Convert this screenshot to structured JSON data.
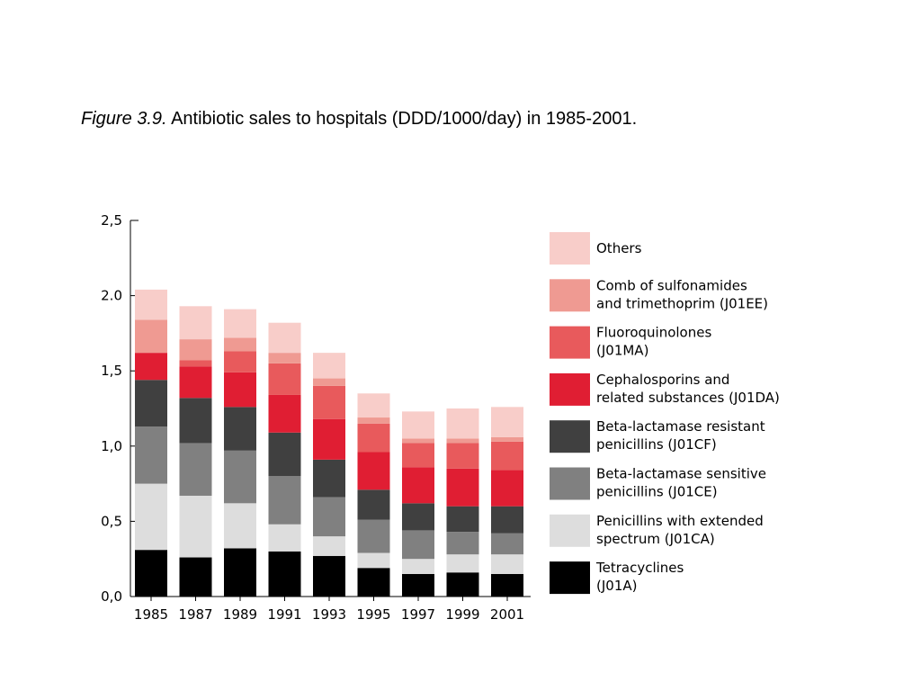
{
  "caption": {
    "figure_label": "Figure 3.9.",
    "text": "Antibiotic sales to hospitals (DDD/1000/day) in 1985-2001."
  },
  "chart_data": {
    "type": "bar",
    "stacked": true,
    "categories": [
      "1985",
      "1987",
      "1989",
      "1991",
      "1993",
      "1995",
      "1997",
      "1999",
      "2001"
    ],
    "ylim": [
      0,
      2.5
    ],
    "yticks": [
      "0,0",
      "0,5",
      "1,0",
      "1,5",
      "2.0",
      "2,5"
    ],
    "ytick_values": [
      0,
      0.5,
      1.0,
      1.5,
      2.0,
      2.5
    ],
    "grid": false,
    "legend_position": "right",
    "series": [
      {
        "name_lines": [
          "Tetracyclines",
          "(J01A)"
        ],
        "color": "#000000",
        "values": [
          0.31,
          0.26,
          0.32,
          0.3,
          0.27,
          0.19,
          0.15,
          0.16,
          0.15
        ]
      },
      {
        "name_lines": [
          "Penicillins with extended",
          "spectrum (J01CA)"
        ],
        "color": "#dddddd",
        "values": [
          0.44,
          0.41,
          0.3,
          0.18,
          0.13,
          0.1,
          0.1,
          0.12,
          0.13
        ]
      },
      {
        "name_lines": [
          "Beta-lactamase sensitive",
          "penicillins (J01CE)"
        ],
        "color": "#808080",
        "values": [
          0.38,
          0.35,
          0.35,
          0.32,
          0.26,
          0.22,
          0.19,
          0.15,
          0.14
        ]
      },
      {
        "name_lines": [
          "Beta-lactamase resistant",
          "penicillins (J01CF)"
        ],
        "color": "#404040",
        "values": [
          0.31,
          0.3,
          0.29,
          0.29,
          0.25,
          0.2,
          0.18,
          0.17,
          0.18
        ]
      },
      {
        "name_lines": [
          "Cephalosporins and",
          "related substances (J01DA)"
        ],
        "color": "#e01e33",
        "values": [
          0.18,
          0.21,
          0.23,
          0.25,
          0.27,
          0.25,
          0.24,
          0.25,
          0.24
        ]
      },
      {
        "name_lines": [
          "Fluoroquinolones",
          "(J01MA)"
        ],
        "color": "#e85a5c",
        "values": [
          0.0,
          0.04,
          0.14,
          0.21,
          0.22,
          0.19,
          0.16,
          0.17,
          0.19
        ]
      },
      {
        "name_lines": [
          "Comb of sulfonamides",
          "and trimethoprim (J01EE)"
        ],
        "color": "#ef9a92",
        "values": [
          0.22,
          0.14,
          0.09,
          0.07,
          0.05,
          0.04,
          0.03,
          0.03,
          0.03
        ]
      },
      {
        "name_lines": [
          "Others"
        ],
        "color": "#f8cdc9",
        "values": [
          0.2,
          0.22,
          0.19,
          0.2,
          0.17,
          0.16,
          0.18,
          0.2,
          0.2
        ]
      }
    ]
  }
}
